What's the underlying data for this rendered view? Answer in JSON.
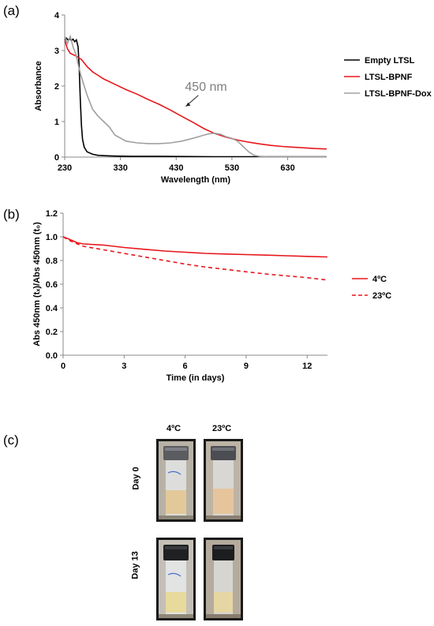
{
  "panels": {
    "a": "(a)",
    "b": "(b)",
    "c": "(c)"
  },
  "chart_data": [
    {
      "type": "line",
      "xlabel": "Wavelength (nm)",
      "ylabel": "Absorbance",
      "xlim": [
        230,
        700
      ],
      "ylim": [
        0,
        4
      ],
      "xticks": [
        230,
        330,
        430,
        530,
        630
      ],
      "yticks": [
        0,
        1,
        2,
        3,
        4
      ],
      "grid": false,
      "legend_position": "right",
      "annotation": {
        "text": "450 nm",
        "x": 450,
        "y": 1.25
      },
      "series": [
        {
          "name": "Empty LTSL",
          "color": "#000000",
          "x": [
            230,
            233,
            236,
            239,
            242,
            245,
            248,
            251,
            254,
            256,
            258,
            260,
            262,
            265,
            270,
            280,
            290,
            300,
            320,
            350,
            400,
            500,
            600,
            700
          ],
          "y": [
            3.3,
            3.35,
            3.3,
            3.33,
            3.28,
            3.32,
            3.25,
            3.3,
            3.1,
            2.5,
            1.6,
            0.9,
            0.5,
            0.28,
            0.15,
            0.08,
            0.05,
            0.04,
            0.03,
            0.02,
            0.02,
            0.01,
            0.01,
            0.01
          ]
        },
        {
          "name": "LTSL-BPNF",
          "color": "#e8161b",
          "x": [
            230,
            235,
            240,
            250,
            260,
            270,
            280,
            290,
            300,
            320,
            340,
            360,
            380,
            400,
            420,
            440,
            460,
            480,
            500,
            520,
            540,
            560,
            580,
            600,
            620,
            640,
            660,
            680,
            700
          ],
          "y": [
            3.3,
            3.05,
            2.92,
            2.85,
            2.75,
            2.55,
            2.4,
            2.3,
            2.2,
            2.05,
            1.9,
            1.77,
            1.62,
            1.48,
            1.32,
            1.15,
            0.98,
            0.8,
            0.66,
            0.56,
            0.48,
            0.42,
            0.37,
            0.33,
            0.3,
            0.28,
            0.26,
            0.24,
            0.23
          ]
        },
        {
          "name": "LTSL-BPNF-Dox",
          "color": "#a0a0a0",
          "x": [
            230,
            235,
            240,
            245,
            250,
            255,
            260,
            270,
            280,
            290,
            300,
            310,
            320,
            340,
            360,
            380,
            400,
            420,
            440,
            460,
            480,
            490,
            500,
            510,
            520,
            530,
            540,
            550,
            560,
            570,
            580,
            600,
            650,
            700
          ],
          "y": [
            3.4,
            3.2,
            3.4,
            3.1,
            2.9,
            2.55,
            2.25,
            1.75,
            1.35,
            1.15,
            1.0,
            0.85,
            0.62,
            0.45,
            0.4,
            0.38,
            0.38,
            0.4,
            0.45,
            0.53,
            0.62,
            0.66,
            0.67,
            0.64,
            0.57,
            0.53,
            0.45,
            0.3,
            0.15,
            0.05,
            0.02,
            0.01,
            0.01,
            0.01
          ]
        }
      ]
    },
    {
      "type": "line",
      "xlabel": "Time (in days)",
      "ylabel": "Abs 450nm (tₓ)/Abs 450nm (t₀)",
      "xlim": [
        0,
        13
      ],
      "ylim": [
        0,
        1.2
      ],
      "xticks": [
        0,
        3,
        6,
        9,
        12
      ],
      "yticks": [
        0.0,
        0.2,
        0.4,
        0.6,
        0.8,
        1.0,
        1.2
      ],
      "grid": false,
      "legend_position": "right",
      "series": [
        {
          "name": "4ºC",
          "color": "#e8161b",
          "dash": "solid",
          "x": [
            0,
            0.3,
            0.7,
            1,
            2,
            3,
            4,
            5,
            6,
            7,
            8,
            9,
            10,
            11,
            12,
            13
          ],
          "y": [
            1.0,
            0.98,
            0.95,
            0.94,
            0.93,
            0.91,
            0.895,
            0.88,
            0.87,
            0.86,
            0.855,
            0.85,
            0.845,
            0.84,
            0.835,
            0.83
          ]
        },
        {
          "name": "23ºC",
          "color": "#e8161b",
          "dash": "dashed",
          "x": [
            0,
            0.3,
            0.7,
            1,
            2,
            3,
            4,
            5,
            6,
            7,
            8,
            9,
            10,
            11,
            12,
            13
          ],
          "y": [
            1.0,
            0.97,
            0.94,
            0.92,
            0.89,
            0.86,
            0.83,
            0.8,
            0.77,
            0.745,
            0.725,
            0.705,
            0.685,
            0.67,
            0.655,
            0.635
          ]
        }
      ]
    }
  ],
  "photos": {
    "columns": [
      "4ºC",
      "23ºC"
    ],
    "rows": [
      "Day 0",
      "Day 13"
    ]
  }
}
